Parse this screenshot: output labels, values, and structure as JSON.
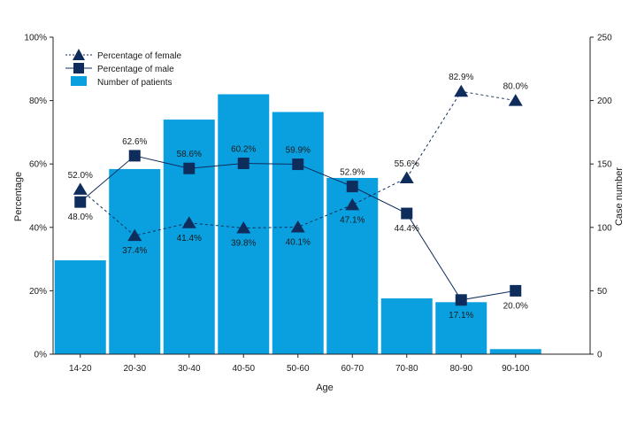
{
  "chart_data": {
    "type": "bar",
    "categories": [
      "14-20",
      "20-30",
      "30-40",
      "40-50",
      "50-60",
      "60-70",
      "70-80",
      "80-90",
      "90-100"
    ],
    "xlabel": "Age",
    "ylabel": "Percentage",
    "y2label": "Case number",
    "ylim": [
      0,
      100
    ],
    "y2lim": [
      0,
      250
    ],
    "yticks": [
      "0%",
      "20%",
      "40%",
      "60%",
      "80%",
      "100%"
    ],
    "y2ticks": [
      "0",
      "50",
      "100",
      "150",
      "200",
      "250"
    ],
    "legend_position": "top-left",
    "grid": false,
    "bars": {
      "name": "Number of patients",
      "color": "#0aa0e0",
      "values": [
        74,
        146,
        185,
        205,
        191,
        139,
        44,
        41,
        4
      ]
    },
    "series": [
      {
        "name": "Percentage of female",
        "marker": "triangle",
        "line_style": "dashed",
        "color": "#0f2d5c",
        "values": [
          52.0,
          37.4,
          41.4,
          39.8,
          40.1,
          47.1,
          55.6,
          82.9,
          80.0
        ],
        "labels": [
          "52.0%",
          "37.4%",
          "41.4%",
          "39.8%",
          "40.1%",
          "47.1%",
          "55.6%",
          "82.9%",
          "80.0%"
        ]
      },
      {
        "name": "Percentage of male",
        "marker": "square",
        "line_style": "solid",
        "color": "#0f2d5c",
        "values": [
          48.0,
          62.6,
          58.6,
          60.2,
          59.9,
          52.9,
          44.4,
          17.1,
          20.0
        ],
        "labels": [
          "48.0%",
          "62.6%",
          "58.6%",
          "60.2%",
          "59.9%",
          "52.9%",
          "44.4%",
          "17.1%",
          "20.0%"
        ]
      }
    ]
  }
}
